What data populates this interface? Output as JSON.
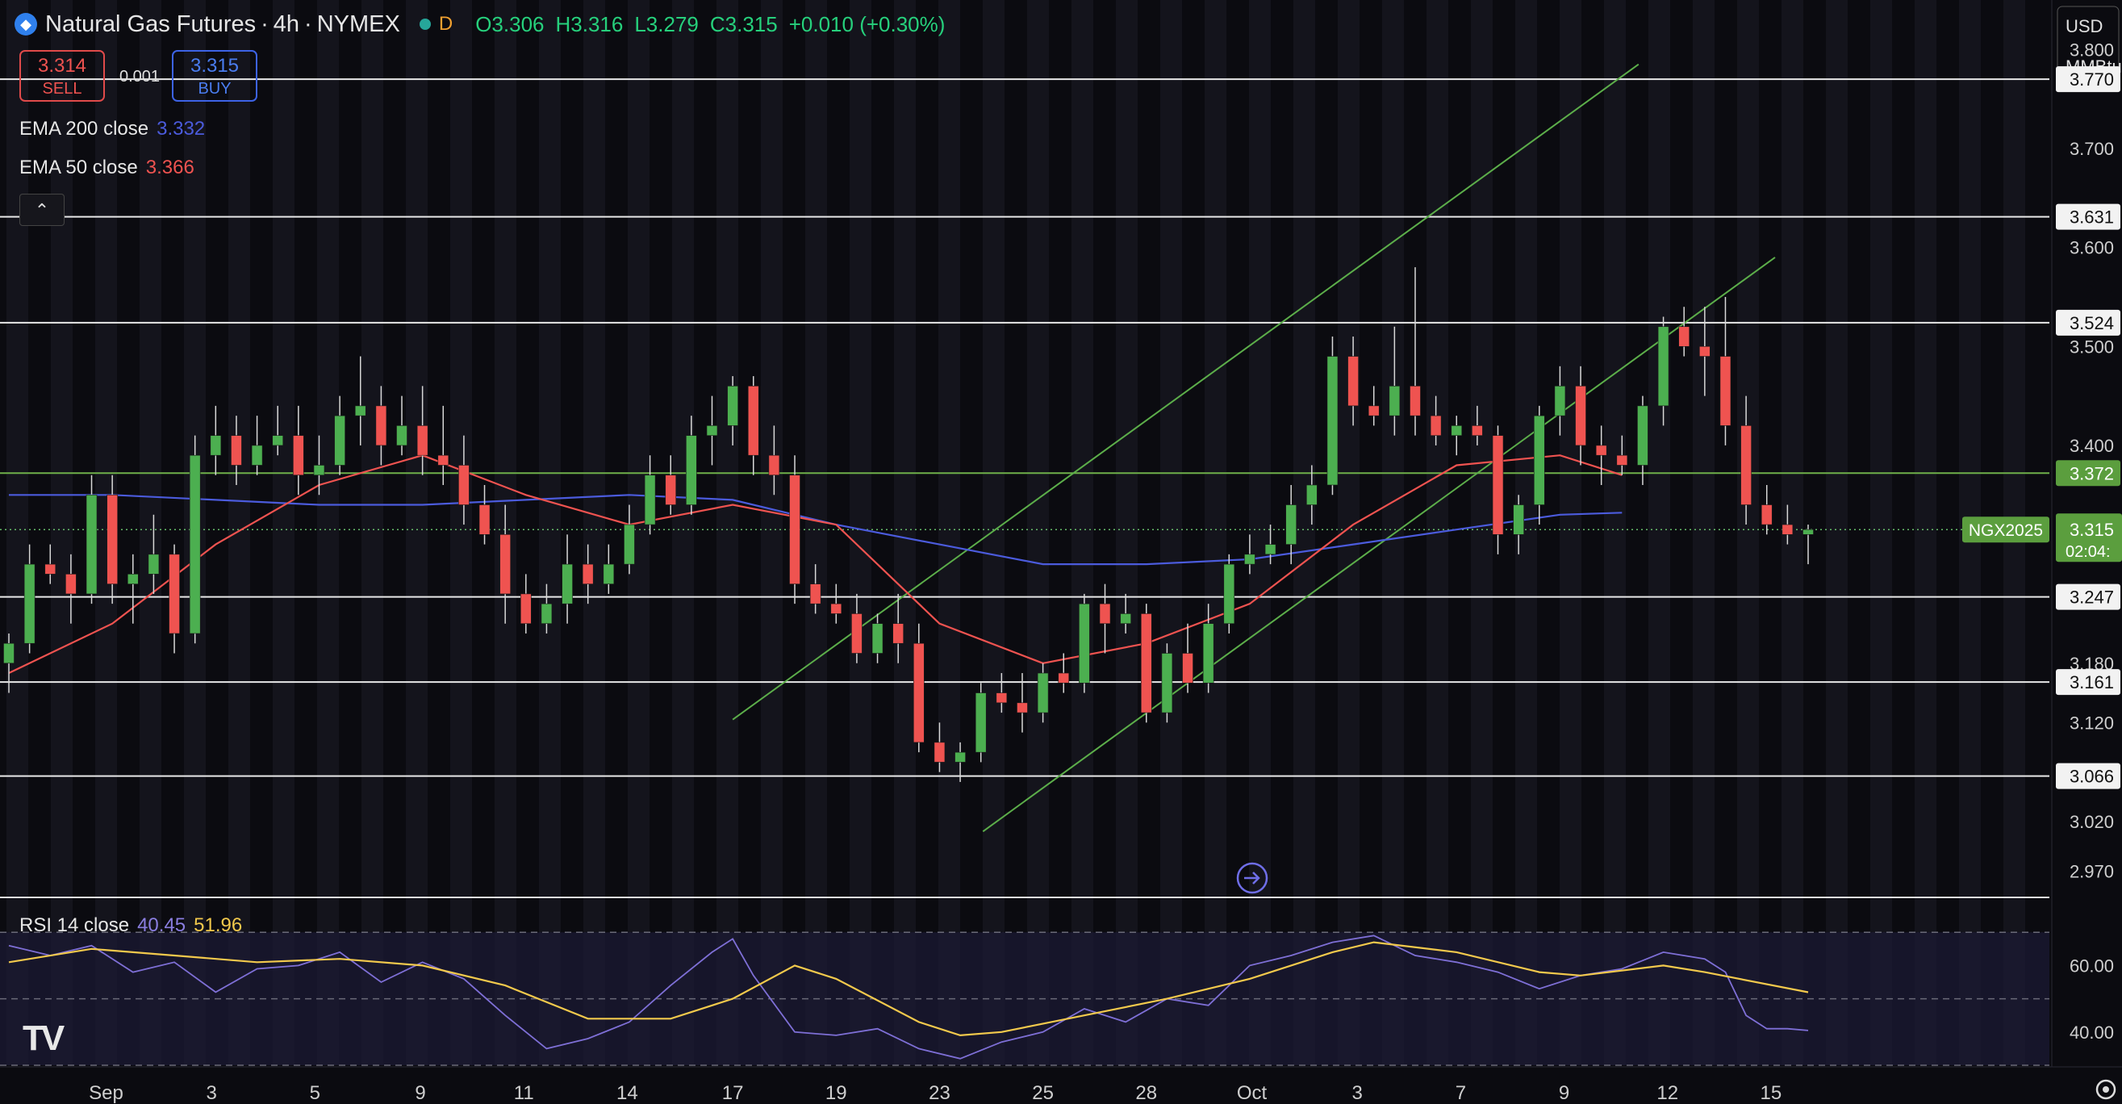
{
  "header": {
    "title": "Natural Gas Futures",
    "interval": "4h",
    "exchange": "NYMEX",
    "session_badge": "D",
    "open": "O3.306",
    "high": "H3.316",
    "low": "L3.279",
    "close": "C3.315",
    "change": "+0.010 (+0.30%)"
  },
  "trade": {
    "sell_price": "3.314",
    "sell_label": "SELL",
    "spread": "0.001",
    "buy_price": "3.315",
    "buy_label": "BUY"
  },
  "indicators": [
    {
      "label": "EMA 200 close",
      "value": "3.332",
      "color": "#4b5bdc"
    },
    {
      "label": "EMA 50 close",
      "value": "3.366",
      "color": "#ef5350"
    }
  ],
  "rsi": {
    "label": "RSI 14 close",
    "value": "40.45",
    "ma_value": "51.96",
    "line_color": "#7e6fd6",
    "ma_color": "#f2c94c"
  },
  "axis": {
    "currency": "USD",
    "unit": "MMBtu",
    "countdown": "02:04:"
  },
  "collapse_glyph": "⌃",
  "logo_text": "TV",
  "colors": {
    "up": "#4caf50",
    "down": "#ef5350",
    "background": "#0b0b10",
    "level": "#e8e8e8",
    "channel": "#5cae4a",
    "price_tag": "#5b9e3e"
  },
  "chart_data": {
    "type": "candlestick",
    "title": "Natural Gas Futures · 4h · NYMEX",
    "symbol_tag": "NGX2025",
    "current_price": 3.315,
    "ylim": [
      2.945,
      3.85
    ],
    "yticks": [
      3.8,
      3.7,
      3.6,
      3.5,
      3.4,
      3.18,
      3.12,
      3.02,
      2.97
    ],
    "x_range": [
      0,
      90
    ],
    "xticks": [
      {
        "x": 4.7,
        "label": "Sep"
      },
      {
        "x": 9.8,
        "label": "3"
      },
      {
        "x": 14.8,
        "label": "5"
      },
      {
        "x": 19.9,
        "label": "9"
      },
      {
        "x": 24.9,
        "label": "11"
      },
      {
        "x": 29.9,
        "label": "14"
      },
      {
        "x": 35.0,
        "label": "17"
      },
      {
        "x": 40.0,
        "label": "19"
      },
      {
        "x": 45.0,
        "label": "23"
      },
      {
        "x": 50.0,
        "label": "25"
      },
      {
        "x": 55.0,
        "label": "28"
      },
      {
        "x": 60.1,
        "label": "Oct"
      },
      {
        "x": 65.2,
        "label": "3"
      },
      {
        "x": 70.2,
        "label": "7"
      },
      {
        "x": 75.2,
        "label": "9"
      },
      {
        "x": 80.2,
        "label": "12"
      },
      {
        "x": 85.2,
        "label": "15"
      }
    ],
    "horizontal_levels": [
      3.77,
      3.631,
      3.524,
      3.247,
      3.161,
      3.066
    ],
    "green_level": 3.372,
    "channel_lines": [
      {
        "x1": 35,
        "y1": 3.123,
        "x2": 78.8,
        "y2": 3.785
      },
      {
        "x1": 47.1,
        "y1": 3.01,
        "x2": 85.4,
        "y2": 3.59
      }
    ],
    "candles": [
      [
        0,
        3.18,
        3.21,
        3.15,
        3.2
      ],
      [
        1,
        3.2,
        3.3,
        3.19,
        3.28
      ],
      [
        2,
        3.28,
        3.3,
        3.26,
        3.27
      ],
      [
        3,
        3.27,
        3.29,
        3.22,
        3.25
      ],
      [
        4,
        3.25,
        3.37,
        3.24,
        3.35
      ],
      [
        5,
        3.35,
        3.37,
        3.24,
        3.26
      ],
      [
        6,
        3.26,
        3.29,
        3.22,
        3.27
      ],
      [
        7,
        3.27,
        3.33,
        3.25,
        3.29
      ],
      [
        8,
        3.29,
        3.3,
        3.19,
        3.21
      ],
      [
        9,
        3.21,
        3.41,
        3.2,
        3.39
      ],
      [
        10,
        3.39,
        3.44,
        3.37,
        3.41
      ],
      [
        11,
        3.41,
        3.43,
        3.36,
        3.38
      ],
      [
        12,
        3.38,
        3.43,
        3.37,
        3.4
      ],
      [
        13,
        3.4,
        3.44,
        3.39,
        3.41
      ],
      [
        14,
        3.41,
        3.44,
        3.35,
        3.37
      ],
      [
        15,
        3.37,
        3.41,
        3.35,
        3.38
      ],
      [
        16,
        3.38,
        3.45,
        3.37,
        3.43
      ],
      [
        17,
        3.43,
        3.49,
        3.4,
        3.44
      ],
      [
        18,
        3.44,
        3.46,
        3.38,
        3.4
      ],
      [
        19,
        3.4,
        3.45,
        3.39,
        3.42
      ],
      [
        20,
        3.42,
        3.46,
        3.37,
        3.39
      ],
      [
        21,
        3.39,
        3.44,
        3.36,
        3.38
      ],
      [
        22,
        3.38,
        3.41,
        3.32,
        3.34
      ],
      [
        23,
        3.34,
        3.36,
        3.3,
        3.31
      ],
      [
        24,
        3.31,
        3.34,
        3.22,
        3.25
      ],
      [
        25,
        3.25,
        3.27,
        3.21,
        3.22
      ],
      [
        26,
        3.22,
        3.26,
        3.21,
        3.24
      ],
      [
        27,
        3.24,
        3.31,
        3.22,
        3.28
      ],
      [
        28,
        3.28,
        3.3,
        3.24,
        3.26
      ],
      [
        29,
        3.26,
        3.3,
        3.25,
        3.28
      ],
      [
        30,
        3.28,
        3.34,
        3.27,
        3.32
      ],
      [
        31,
        3.32,
        3.39,
        3.31,
        3.37
      ],
      [
        32,
        3.37,
        3.39,
        3.33,
        3.34
      ],
      [
        33,
        3.34,
        3.43,
        3.33,
        3.41
      ],
      [
        34,
        3.41,
        3.45,
        3.38,
        3.42
      ],
      [
        35,
        3.42,
        3.47,
        3.4,
        3.46
      ],
      [
        36,
        3.46,
        3.47,
        3.37,
        3.39
      ],
      [
        37,
        3.39,
        3.42,
        3.35,
        3.37
      ],
      [
        38,
        3.37,
        3.39,
        3.24,
        3.26
      ],
      [
        39,
        3.26,
        3.28,
        3.23,
        3.24
      ],
      [
        40,
        3.24,
        3.26,
        3.22,
        3.23
      ],
      [
        41,
        3.23,
        3.25,
        3.18,
        3.19
      ],
      [
        42,
        3.19,
        3.23,
        3.18,
        3.22
      ],
      [
        43,
        3.22,
        3.25,
        3.18,
        3.2
      ],
      [
        44,
        3.2,
        3.22,
        3.09,
        3.1
      ],
      [
        45,
        3.1,
        3.12,
        3.07,
        3.08
      ],
      [
        46,
        3.08,
        3.1,
        3.06,
        3.09
      ],
      [
        47,
        3.09,
        3.16,
        3.08,
        3.15
      ],
      [
        48,
        3.15,
        3.17,
        3.13,
        3.14
      ],
      [
        49,
        3.14,
        3.17,
        3.11,
        3.13
      ],
      [
        50,
        3.13,
        3.18,
        3.12,
        3.17
      ],
      [
        51,
        3.17,
        3.19,
        3.15,
        3.16
      ],
      [
        52,
        3.16,
        3.25,
        3.15,
        3.24
      ],
      [
        53,
        3.24,
        3.26,
        3.19,
        3.22
      ],
      [
        54,
        3.22,
        3.25,
        3.21,
        3.23
      ],
      [
        55,
        3.23,
        3.24,
        3.12,
        3.13
      ],
      [
        56,
        3.13,
        3.2,
        3.12,
        3.19
      ],
      [
        57,
        3.19,
        3.22,
        3.15,
        3.16
      ],
      [
        58,
        3.16,
        3.24,
        3.15,
        3.22
      ],
      [
        59,
        3.22,
        3.29,
        3.21,
        3.28
      ],
      [
        60,
        3.28,
        3.31,
        3.27,
        3.29
      ],
      [
        61,
        3.29,
        3.32,
        3.28,
        3.3
      ],
      [
        62,
        3.3,
        3.36,
        3.28,
        3.34
      ],
      [
        63,
        3.34,
        3.38,
        3.32,
        3.36
      ],
      [
        64,
        3.36,
        3.51,
        3.35,
        3.49
      ],
      [
        65,
        3.49,
        3.51,
        3.42,
        3.44
      ],
      [
        66,
        3.44,
        3.46,
        3.42,
        3.43
      ],
      [
        67,
        3.43,
        3.52,
        3.41,
        3.46
      ],
      [
        68,
        3.46,
        3.58,
        3.41,
        3.43
      ],
      [
        69,
        3.43,
        3.45,
        3.4,
        3.41
      ],
      [
        70,
        3.41,
        3.43,
        3.39,
        3.42
      ],
      [
        71,
        3.42,
        3.44,
        3.4,
        3.41
      ],
      [
        72,
        3.41,
        3.42,
        3.29,
        3.31
      ],
      [
        73,
        3.31,
        3.35,
        3.29,
        3.34
      ],
      [
        74,
        3.34,
        3.44,
        3.32,
        3.43
      ],
      [
        75,
        3.43,
        3.48,
        3.41,
        3.46
      ],
      [
        76,
        3.46,
        3.48,
        3.38,
        3.4
      ],
      [
        77,
        3.4,
        3.42,
        3.36,
        3.39
      ],
      [
        78,
        3.39,
        3.41,
        3.37,
        3.38
      ],
      [
        79,
        3.38,
        3.45,
        3.36,
        3.44
      ],
      [
        80,
        3.44,
        3.53,
        3.42,
        3.52
      ],
      [
        81,
        3.52,
        3.54,
        3.49,
        3.5
      ],
      [
        82,
        3.5,
        3.54,
        3.45,
        3.49
      ],
      [
        83,
        3.49,
        3.55,
        3.4,
        3.42
      ],
      [
        84,
        3.42,
        3.45,
        3.32,
        3.34
      ],
      [
        85,
        3.34,
        3.36,
        3.31,
        3.32
      ],
      [
        86,
        3.32,
        3.34,
        3.3,
        3.31
      ],
      [
        87,
        3.31,
        3.32,
        3.28,
        3.315
      ]
    ],
    "ema50": [
      [
        0,
        3.17
      ],
      [
        5,
        3.22
      ],
      [
        10,
        3.3
      ],
      [
        15,
        3.36
      ],
      [
        20,
        3.39
      ],
      [
        25,
        3.35
      ],
      [
        30,
        3.32
      ],
      [
        35,
        3.34
      ],
      [
        40,
        3.32
      ],
      [
        45,
        3.22
      ],
      [
        50,
        3.18
      ],
      [
        55,
        3.2
      ],
      [
        60,
        3.24
      ],
      [
        65,
        3.32
      ],
      [
        70,
        3.38
      ],
      [
        75,
        3.39
      ],
      [
        78,
        3.37
      ]
    ],
    "ema200": [
      [
        0,
        3.35
      ],
      [
        5,
        3.35
      ],
      [
        10,
        3.345
      ],
      [
        15,
        3.34
      ],
      [
        20,
        3.34
      ],
      [
        25,
        3.345
      ],
      [
        30,
        3.35
      ],
      [
        35,
        3.345
      ],
      [
        40,
        3.32
      ],
      [
        45,
        3.3
      ],
      [
        50,
        3.28
      ],
      [
        55,
        3.28
      ],
      [
        60,
        3.285
      ],
      [
        65,
        3.3
      ],
      [
        70,
        3.315
      ],
      [
        75,
        3.33
      ],
      [
        78,
        3.332
      ]
    ],
    "rsi_panel": {
      "ylim": [
        30,
        80
      ],
      "bands": [
        70,
        50,
        30
      ],
      "yticks": [
        60,
        40
      ]
    },
    "rsi": [
      [
        0,
        66
      ],
      [
        2,
        63
      ],
      [
        4,
        66
      ],
      [
        6,
        58
      ],
      [
        8,
        61
      ],
      [
        10,
        52
      ],
      [
        12,
        59
      ],
      [
        14,
        60
      ],
      [
        16,
        64
      ],
      [
        18,
        55
      ],
      [
        20,
        61
      ],
      [
        22,
        56
      ],
      [
        24,
        45
      ],
      [
        26,
        35
      ],
      [
        28,
        38
      ],
      [
        30,
        43
      ],
      [
        32,
        54
      ],
      [
        34,
        64
      ],
      [
        35,
        68
      ],
      [
        36,
        57
      ],
      [
        38,
        40
      ],
      [
        40,
        39
      ],
      [
        42,
        41
      ],
      [
        44,
        35
      ],
      [
        46,
        32
      ],
      [
        48,
        37
      ],
      [
        50,
        40
      ],
      [
        52,
        47
      ],
      [
        54,
        43
      ],
      [
        56,
        50
      ],
      [
        58,
        48
      ],
      [
        60,
        60
      ],
      [
        62,
        63
      ],
      [
        64,
        67
      ],
      [
        66,
        69
      ],
      [
        68,
        63
      ],
      [
        70,
        61
      ],
      [
        72,
        58
      ],
      [
        74,
        53
      ],
      [
        76,
        57
      ],
      [
        78,
        59
      ],
      [
        80,
        64
      ],
      [
        82,
        62
      ],
      [
        83,
        58
      ],
      [
        84,
        45
      ],
      [
        85,
        41
      ],
      [
        86,
        41
      ],
      [
        87,
        40.45
      ]
    ],
    "rsi_ma": [
      [
        0,
        61
      ],
      [
        4,
        65
      ],
      [
        8,
        63
      ],
      [
        12,
        61
      ],
      [
        16,
        62
      ],
      [
        20,
        60
      ],
      [
        24,
        54
      ],
      [
        28,
        44
      ],
      [
        32,
        44
      ],
      [
        35,
        50
      ],
      [
        38,
        60
      ],
      [
        40,
        56
      ],
      [
        44,
        43
      ],
      [
        46,
        39
      ],
      [
        48,
        40
      ],
      [
        52,
        45
      ],
      [
        56,
        50
      ],
      [
        60,
        56
      ],
      [
        64,
        64
      ],
      [
        66,
        67
      ],
      [
        70,
        64
      ],
      [
        74,
        58
      ],
      [
        76,
        57
      ],
      [
        80,
        60
      ],
      [
        82,
        58
      ],
      [
        87,
        51.96
      ]
    ]
  }
}
